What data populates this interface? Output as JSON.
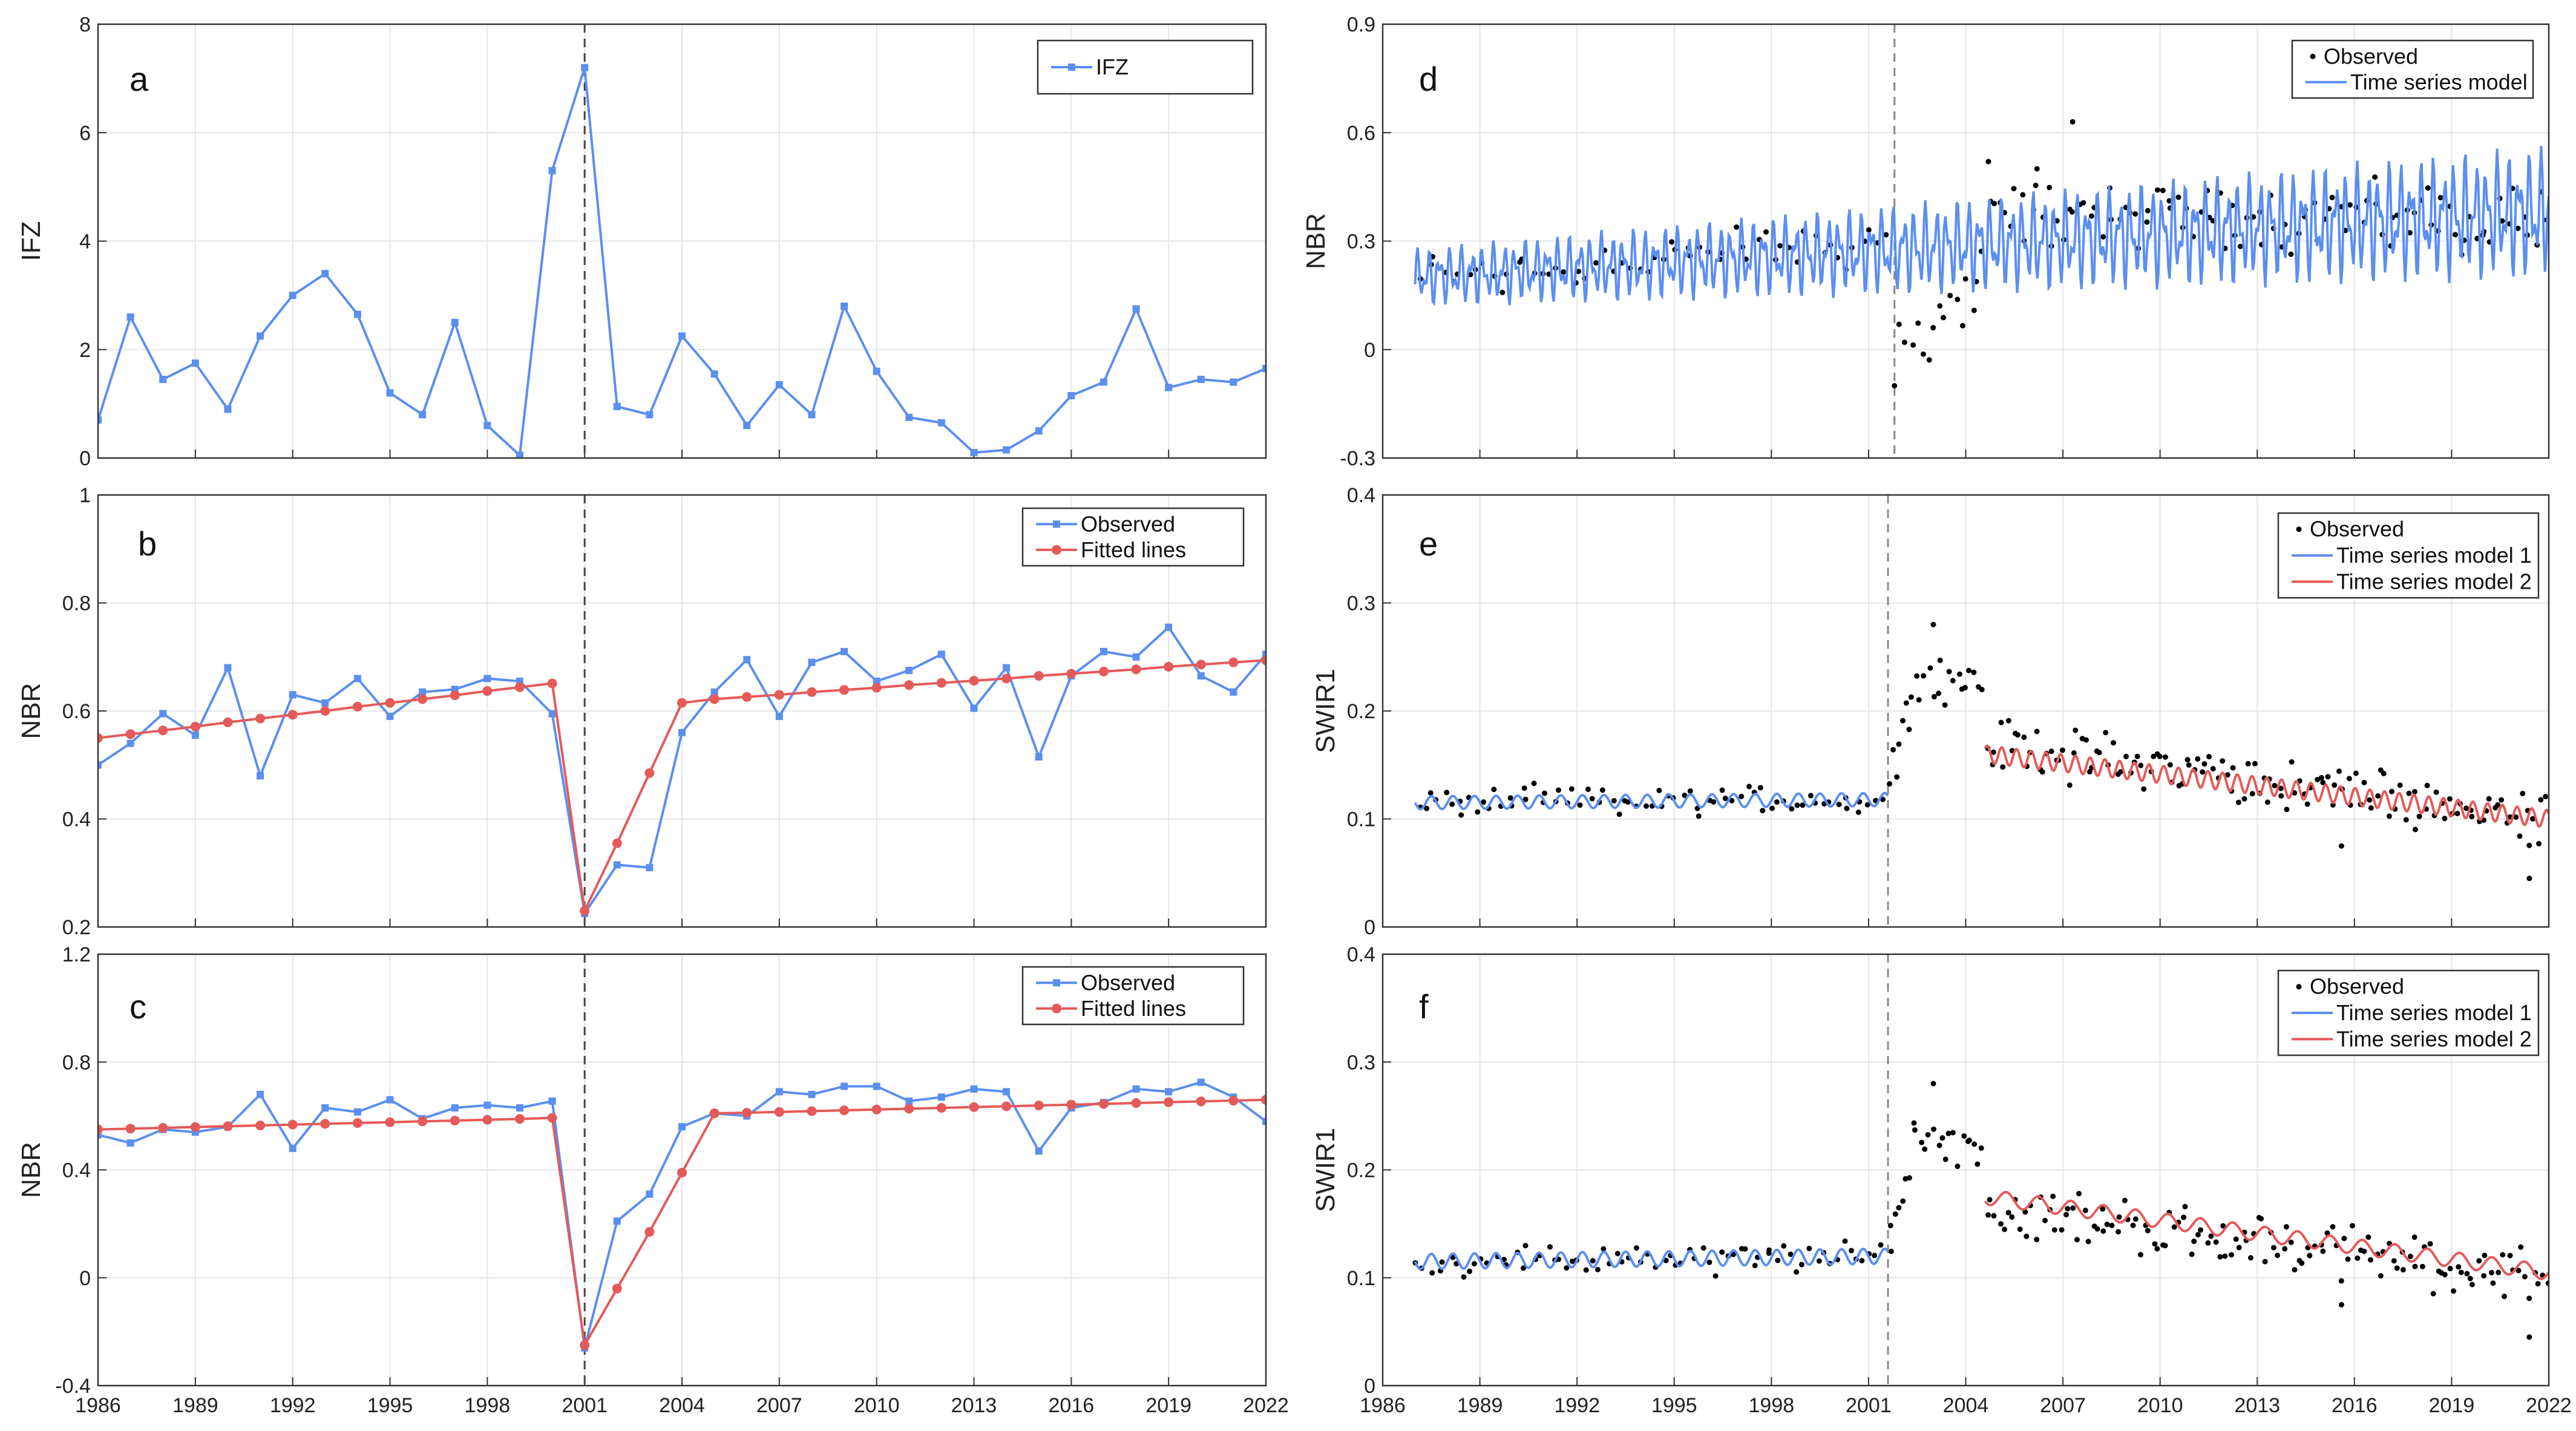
{
  "figure": {
    "colors": {
      "blue": "#5b8ff0",
      "red": "#e45a5a",
      "black": "#000000",
      "grid": "#e6e6e6",
      "axis": "#333333",
      "dashed": "#444444",
      "dashed_light": "#888888"
    },
    "x_axis_ticks": [
      "1986",
      "1989",
      "1992",
      "1995",
      "1998",
      "2001",
      "2004",
      "2007",
      "2010",
      "2013",
      "2016",
      "2019",
      "2022"
    ]
  },
  "chart_data": [
    {
      "id": "a",
      "type": "line",
      "label": "a",
      "ylabel": "IFZ",
      "xlim": [
        1986,
        2022
      ],
      "ylim": [
        0,
        8
      ],
      "yticks": [
        "0",
        "2",
        "4",
        "6",
        "8"
      ],
      "show_xticklabels": false,
      "vline": 2001,
      "legend": [
        "IFZ"
      ],
      "x": [
        1986,
        1987,
        1988,
        1989,
        1990,
        1991,
        1992,
        1993,
        1994,
        1995,
        1996,
        1997,
        1998,
        1999,
        2000,
        2001,
        2002,
        2003,
        2004,
        2005,
        2006,
        2007,
        2008,
        2009,
        2010,
        2011,
        2012,
        2013,
        2014,
        2015,
        2016,
        2017,
        2018,
        2019,
        2020,
        2021,
        2022
      ],
      "series": [
        {
          "name": "IFZ",
          "values": [
            0.7,
            2.6,
            1.45,
            1.75,
            0.9,
            2.25,
            3.0,
            3.4,
            2.65,
            1.2,
            0.8,
            2.5,
            0.6,
            0.05,
            5.3,
            7.2,
            0.95,
            0.8,
            2.25,
            1.55,
            0.6,
            1.35,
            0.8,
            2.8,
            1.6,
            0.75,
            0.65,
            0.1,
            0.15,
            0.5,
            1.15,
            1.4,
            2.75,
            1.3,
            1.45,
            1.4,
            1.65
          ]
        }
      ]
    },
    {
      "id": "b",
      "type": "line",
      "label": "b",
      "ylabel": "NBR",
      "xlim": [
        1986,
        2022
      ],
      "ylim": [
        0.2,
        1.0
      ],
      "yticks": [
        "0.2",
        "0.4",
        "0.6",
        "0.8",
        "1"
      ],
      "show_xticklabels": false,
      "vline": 2001,
      "legend": [
        "Observed",
        "Fitted lines"
      ],
      "x": [
        1986,
        1987,
        1988,
        1989,
        1990,
        1991,
        1992,
        1993,
        1994,
        1995,
        1996,
        1997,
        1998,
        1999,
        2000,
        2001,
        2002,
        2003,
        2004,
        2005,
        2006,
        2007,
        2008,
        2009,
        2010,
        2011,
        2012,
        2013,
        2014,
        2015,
        2016,
        2017,
        2018,
        2019,
        2020,
        2021,
        2022
      ],
      "series": [
        {
          "name": "Observed",
          "values": [
            0.5,
            0.54,
            0.595,
            0.555,
            0.68,
            0.48,
            0.63,
            0.615,
            0.66,
            0.59,
            0.635,
            0.64,
            0.66,
            0.655,
            0.595,
            0.225,
            0.315,
            0.31,
            0.56,
            0.635,
            0.695,
            0.59,
            0.69,
            0.71,
            0.655,
            0.675,
            0.705,
            0.605,
            0.68,
            0.515,
            0.665,
            0.71,
            0.7,
            0.755,
            0.665,
            0.635,
            0.705
          ]
        },
        {
          "name": "Fitted lines",
          "values": [
            0.55,
            0.557,
            0.564,
            0.571,
            0.579,
            0.586,
            0.593,
            0.6,
            0.608,
            0.615,
            0.622,
            0.629,
            0.637,
            0.644,
            0.651,
            0.23,
            0.355,
            0.485,
            0.615,
            0.622,
            0.626,
            0.63,
            0.635,
            0.639,
            0.643,
            0.648,
            0.652,
            0.656,
            0.66,
            0.665,
            0.669,
            0.673,
            0.677,
            0.682,
            0.686,
            0.69,
            0.694
          ]
        }
      ]
    },
    {
      "id": "c",
      "type": "line",
      "label": "c",
      "ylabel": "NBR",
      "xlim": [
        1986,
        2022
      ],
      "ylim": [
        -0.4,
        1.2
      ],
      "yticks": [
        "-0.4",
        "0",
        "0.4",
        "0.8",
        "1.2"
      ],
      "show_xticklabels": true,
      "vline": 2001,
      "legend": [
        "Observed",
        "Fitted lines"
      ],
      "x": [
        1986,
        1987,
        1988,
        1989,
        1990,
        1991,
        1992,
        1993,
        1994,
        1995,
        1996,
        1997,
        1998,
        1999,
        2000,
        2001,
        2002,
        2003,
        2004,
        2005,
        2006,
        2007,
        2008,
        2009,
        2010,
        2011,
        2012,
        2013,
        2014,
        2015,
        2016,
        2017,
        2018,
        2019,
        2020,
        2021,
        2022
      ],
      "series": [
        {
          "name": "Observed",
          "values": [
            0.53,
            0.5,
            0.55,
            0.54,
            0.56,
            0.68,
            0.48,
            0.63,
            0.615,
            0.66,
            0.59,
            0.63,
            0.64,
            0.63,
            0.655,
            -0.26,
            0.21,
            0.31,
            0.56,
            0.61,
            0.6,
            0.69,
            0.68,
            0.71,
            0.71,
            0.655,
            0.67,
            0.7,
            0.69,
            0.47,
            0.63,
            0.65,
            0.7,
            0.69,
            0.725,
            0.67,
            0.58
          ]
        },
        {
          "name": "Fitted lines",
          "values": [
            0.55,
            0.553,
            0.556,
            0.559,
            0.562,
            0.565,
            0.568,
            0.571,
            0.574,
            0.577,
            0.58,
            0.583,
            0.586,
            0.589,
            0.593,
            -0.25,
            -0.04,
            0.17,
            0.39,
            0.61,
            0.612,
            0.615,
            0.618,
            0.621,
            0.624,
            0.627,
            0.63,
            0.633,
            0.636,
            0.639,
            0.642,
            0.645,
            0.648,
            0.651,
            0.654,
            0.657,
            0.66
          ]
        }
      ]
    },
    {
      "id": "d",
      "type": "line",
      "label": "d",
      "ylabel": "NBR",
      "xlim": [
        1986,
        2022
      ],
      "ylim": [
        -0.3,
        0.9
      ],
      "yticks": [
        "-0.3",
        "0",
        "0.3",
        "0.6",
        "0.9"
      ],
      "show_xticklabels": false,
      "vline": 2001.8,
      "legend": [
        "Observed",
        "Time series model"
      ],
      "model_segments": [
        {
          "name": "Time series model",
          "x_start": 1987,
          "x_end": 2022,
          "base_start": 0.2,
          "base_end": 0.38,
          "amplitude_start": 0.07,
          "amplitude_end": 0.16,
          "cycles_per_year": 3
        }
      ],
      "observed_clusters": [
        {
          "x_start": 1987,
          "x_end": 2001.7,
          "center_start": 0.2,
          "center_end": 0.3,
          "spread": 0.09,
          "per_year": 4
        },
        {
          "x_start": 2001.9,
          "x_end": 2004.6,
          "center_start": 0.0,
          "center_end": 0.2,
          "spread": 0.12,
          "per_year": 6
        },
        {
          "x_start": 2004.6,
          "x_end": 2022,
          "center_start": 0.38,
          "center_end": 0.36,
          "spread": 0.12,
          "per_year": 6
        }
      ],
      "observed_extra": [
        [
          2001.8,
          -0.1
        ],
        [
          2007.3,
          0.63
        ],
        [
          2004.7,
          0.52
        ],
        [
          2006.2,
          0.5
        ]
      ]
    },
    {
      "id": "e",
      "type": "line",
      "label": "e",
      "ylabel": "SWIR1",
      "xlim": [
        1986,
        2022
      ],
      "ylim": [
        0,
        0.4
      ],
      "yticks": [
        "0",
        "0.1",
        "0.2",
        "0.3",
        "0.4"
      ],
      "show_xticklabels": false,
      "vline": 2001.6,
      "legend": [
        "Observed",
        "Time series model 1",
        "Time series model 2"
      ],
      "model_segments": [
        {
          "name": "Time series model 1",
          "x_start": 1987,
          "x_end": 2001.6,
          "base_start": 0.115,
          "base_end": 0.118,
          "amplitude_start": 0.006,
          "amplitude_end": 0.006,
          "cycles_per_year": 1.5
        },
        {
          "name": "Time series model 2",
          "x_start": 2004.6,
          "x_end": 2022,
          "base_start": 0.16,
          "base_end": 0.1,
          "amplitude_start": 0.008,
          "amplitude_end": 0.008,
          "cycles_per_year": 2.2
        }
      ],
      "observed_clusters": [
        {
          "x_start": 1987,
          "x_end": 2001.5,
          "center_start": 0.115,
          "center_end": 0.118,
          "spread": 0.018,
          "per_year": 5
        },
        {
          "x_start": 2001.6,
          "x_end": 2002.3,
          "center_start": 0.14,
          "center_end": 0.2,
          "spread": 0.03,
          "per_year": 10
        },
        {
          "x_start": 2002.3,
          "x_end": 2004.6,
          "center_start": 0.235,
          "center_end": 0.22,
          "spread": 0.025,
          "per_year": 8
        },
        {
          "x_start": 2004.6,
          "x_end": 2022,
          "center_start": 0.17,
          "center_end": 0.1,
          "spread": 0.03,
          "per_year": 8
        }
      ],
      "observed_extra": [
        [
          2003.0,
          0.28
        ],
        [
          2021.4,
          0.045
        ],
        [
          2015.6,
          0.075
        ]
      ]
    },
    {
      "id": "f",
      "type": "line",
      "label": "f",
      "ylabel": "SWIR1",
      "xlim": [
        1986,
        2022
      ],
      "ylim": [
        0,
        0.4
      ],
      "yticks": [
        "0",
        "0.1",
        "0.2",
        "0.3",
        "0.4"
      ],
      "show_xticklabels": true,
      "vline": 2001.6,
      "legend": [
        "Observed",
        "Time series model 1",
        "Time series model 2"
      ],
      "model_segments": [
        {
          "name": "Time series model 1",
          "x_start": 1987,
          "x_end": 2001.6,
          "base_start": 0.115,
          "base_end": 0.12,
          "amplitude_start": 0.007,
          "amplitude_end": 0.007,
          "cycles_per_year": 1.5
        },
        {
          "name": "Time series model 2",
          "x_start": 2004.6,
          "x_end": 2022,
          "base_start": 0.175,
          "base_end": 0.105,
          "amplitude_start": 0.007,
          "amplitude_end": 0.007,
          "cycles_per_year": 1
        }
      ],
      "observed_clusters": [
        {
          "x_start": 1987,
          "x_end": 2001.5,
          "center_start": 0.115,
          "center_end": 0.118,
          "spread": 0.018,
          "per_year": 5
        },
        {
          "x_start": 2001.6,
          "x_end": 2002.3,
          "center_start": 0.14,
          "center_end": 0.2,
          "spread": 0.03,
          "per_year": 10
        },
        {
          "x_start": 2002.3,
          "x_end": 2004.6,
          "center_start": 0.235,
          "center_end": 0.22,
          "spread": 0.025,
          "per_year": 8
        },
        {
          "x_start": 2004.6,
          "x_end": 2022,
          "center_start": 0.165,
          "center_end": 0.1,
          "spread": 0.03,
          "per_year": 8
        }
      ],
      "observed_extra": [
        [
          2003.0,
          0.28
        ],
        [
          2021.4,
          0.045
        ],
        [
          2015.6,
          0.075
        ]
      ]
    }
  ]
}
